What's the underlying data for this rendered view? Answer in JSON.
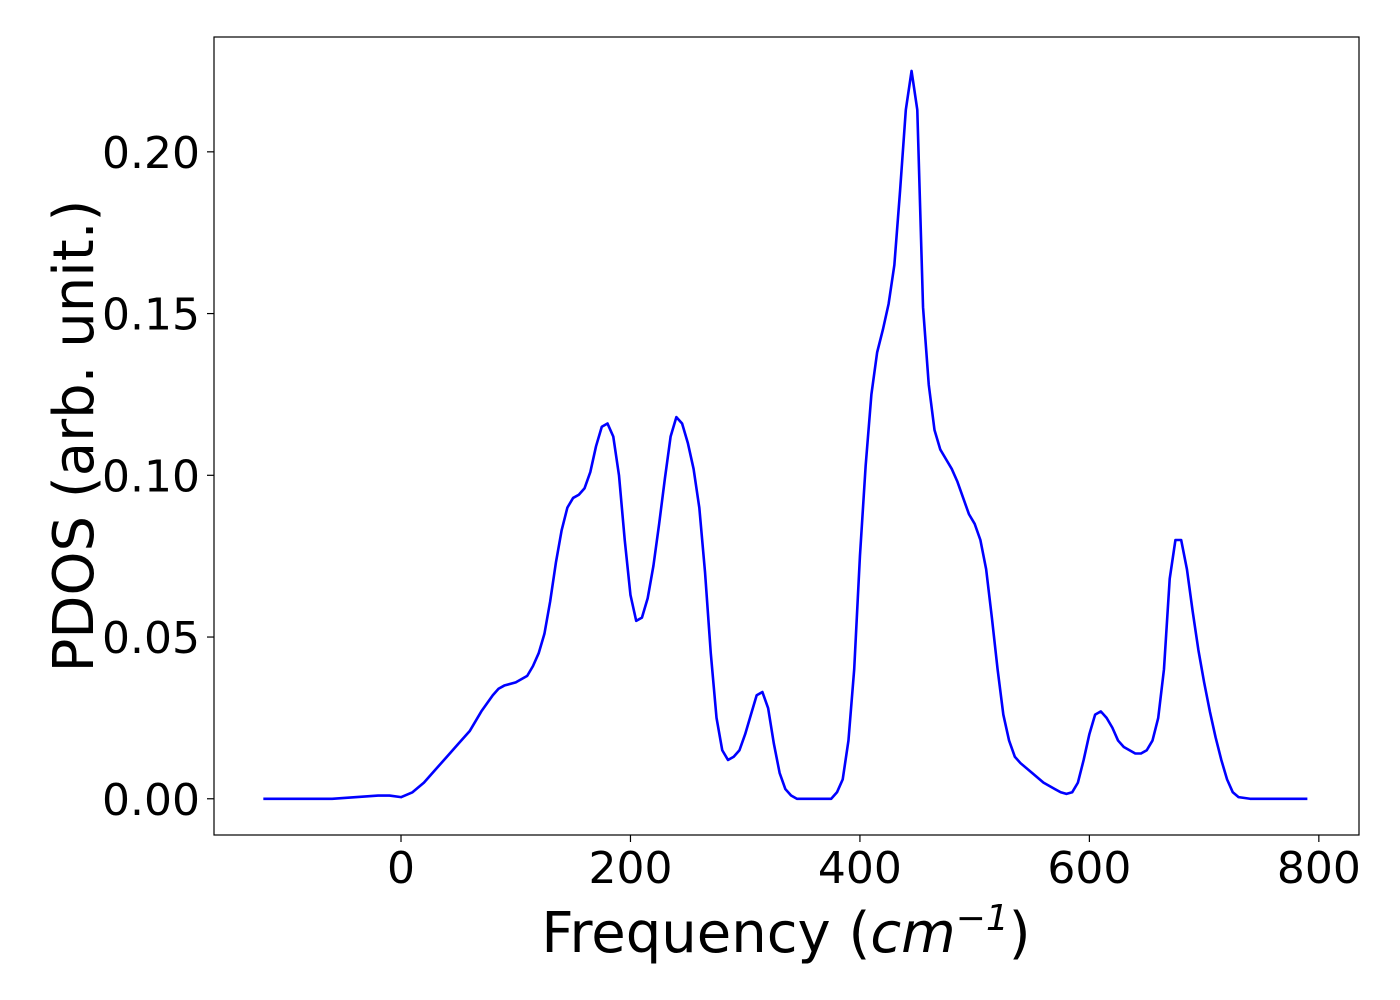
{
  "chart_data": {
    "type": "line",
    "title": "",
    "xlabel": "Frequency (",
    "xlabel_unit": "cm",
    "xlabel_exp": "−1",
    "xlabel_close": ")",
    "ylabel": "PDOS (arb. unit.)",
    "xlim": [
      -163,
      835
    ],
    "ylim": [
      -0.0112,
      0.2355
    ],
    "xticks": [
      0,
      200,
      400,
      600,
      800
    ],
    "xtick_labels": [
      "0",
      "200",
      "400",
      "600",
      "800"
    ],
    "yticks": [
      0.0,
      0.05,
      0.1,
      0.15,
      0.2
    ],
    "ytick_labels": [
      "0.00",
      "0.05",
      "0.10",
      "0.15",
      "0.20"
    ],
    "grid": false,
    "legend": "none",
    "series": [
      {
        "color": "#0000ff",
        "x": [
          -120,
          -60,
          -40,
          -20,
          -10,
          0,
          10,
          20,
          30,
          40,
          50,
          60,
          70,
          80,
          85,
          90,
          100,
          110,
          115,
          120,
          125,
          130,
          135,
          140,
          145,
          150,
          155,
          160,
          165,
          170,
          175,
          180,
          185,
          190,
          195,
          200,
          205,
          210,
          215,
          220,
          225,
          230,
          235,
          240,
          245,
          250,
          255,
          260,
          265,
          270,
          275,
          280,
          285,
          290,
          295,
          300,
          305,
          310,
          315,
          320,
          325,
          330,
          335,
          340,
          345,
          350,
          360,
          370,
          375,
          380,
          385,
          390,
          395,
          400,
          405,
          410,
          415,
          420,
          425,
          430,
          435,
          440,
          445,
          450,
          455,
          460,
          465,
          470,
          475,
          480,
          485,
          490,
          495,
          500,
          505,
          510,
          515,
          520,
          525,
          530,
          535,
          540,
          550,
          560,
          570,
          575,
          580,
          585,
          590,
          595,
          600,
          605,
          610,
          615,
          620,
          625,
          630,
          635,
          640,
          645,
          650,
          655,
          660,
          665,
          670,
          675,
          680,
          685,
          690,
          695,
          700,
          705,
          710,
          715,
          720,
          725,
          730,
          740,
          760,
          790
        ],
        "y": [
          0.0,
          0.0,
          0.0005,
          0.001,
          0.001,
          0.0005,
          0.002,
          0.005,
          0.009,
          0.013,
          0.017,
          0.021,
          0.027,
          0.032,
          0.034,
          0.035,
          0.036,
          0.038,
          0.041,
          0.045,
          0.051,
          0.061,
          0.073,
          0.083,
          0.09,
          0.093,
          0.094,
          0.096,
          0.101,
          0.109,
          0.115,
          0.116,
          0.112,
          0.1,
          0.08,
          0.063,
          0.055,
          0.056,
          0.062,
          0.072,
          0.085,
          0.099,
          0.112,
          0.118,
          0.116,
          0.11,
          0.102,
          0.09,
          0.07,
          0.045,
          0.025,
          0.015,
          0.012,
          0.013,
          0.015,
          0.02,
          0.026,
          0.032,
          0.033,
          0.028,
          0.017,
          0.008,
          0.003,
          0.001,
          0.0,
          0.0,
          0.0,
          0.0,
          0.0,
          0.002,
          0.006,
          0.018,
          0.04,
          0.075,
          0.103,
          0.125,
          0.138,
          0.145,
          0.153,
          0.165,
          0.188,
          0.213,
          0.225,
          0.213,
          0.152,
          0.128,
          0.114,
          0.108,
          0.105,
          0.102,
          0.098,
          0.093,
          0.088,
          0.085,
          0.08,
          0.071,
          0.056,
          0.04,
          0.026,
          0.018,
          0.013,
          0.011,
          0.008,
          0.005,
          0.003,
          0.002,
          0.0015,
          0.002,
          0.005,
          0.012,
          0.02,
          0.026,
          0.027,
          0.025,
          0.022,
          0.018,
          0.016,
          0.015,
          0.014,
          0.014,
          0.015,
          0.018,
          0.025,
          0.04,
          0.068,
          0.08,
          0.08,
          0.071,
          0.058,
          0.046,
          0.036,
          0.027,
          0.019,
          0.012,
          0.006,
          0.002,
          0.0005,
          0.0,
          0.0,
          0.0
        ]
      }
    ]
  }
}
